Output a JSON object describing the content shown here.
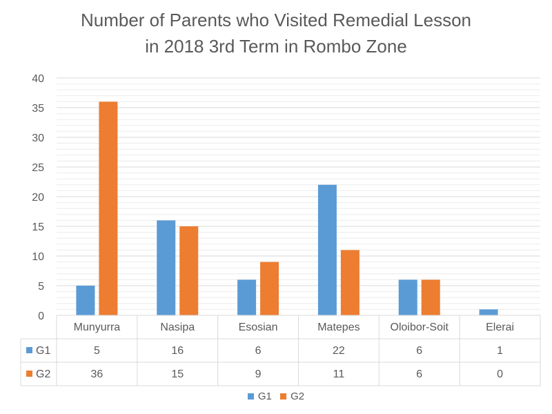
{
  "chart_data": {
    "type": "bar",
    "title_line1": "Number of Parents who Visited Remedial Lesson",
    "title_line2": "in 2018 3rd Term in Rombo Zone",
    "categories": [
      "Munyurra",
      "Nasipa",
      "Esosian",
      "Matepes",
      "Oloibor-Soit",
      "Elerai"
    ],
    "series": [
      {
        "name": "G1",
        "values": [
          5,
          16,
          6,
          22,
          6,
          1
        ],
        "color": "#5B9BD5"
      },
      {
        "name": "G2",
        "values": [
          36,
          15,
          9,
          11,
          6,
          0
        ],
        "color": "#ED7D31"
      }
    ],
    "ylim": [
      0,
      40
    ],
    "yticks": [
      0,
      5,
      10,
      15,
      20,
      25,
      30,
      35,
      40
    ],
    "grid": true,
    "data_table": true,
    "legend_position": "bottom",
    "xlabel": "",
    "ylabel": ""
  }
}
